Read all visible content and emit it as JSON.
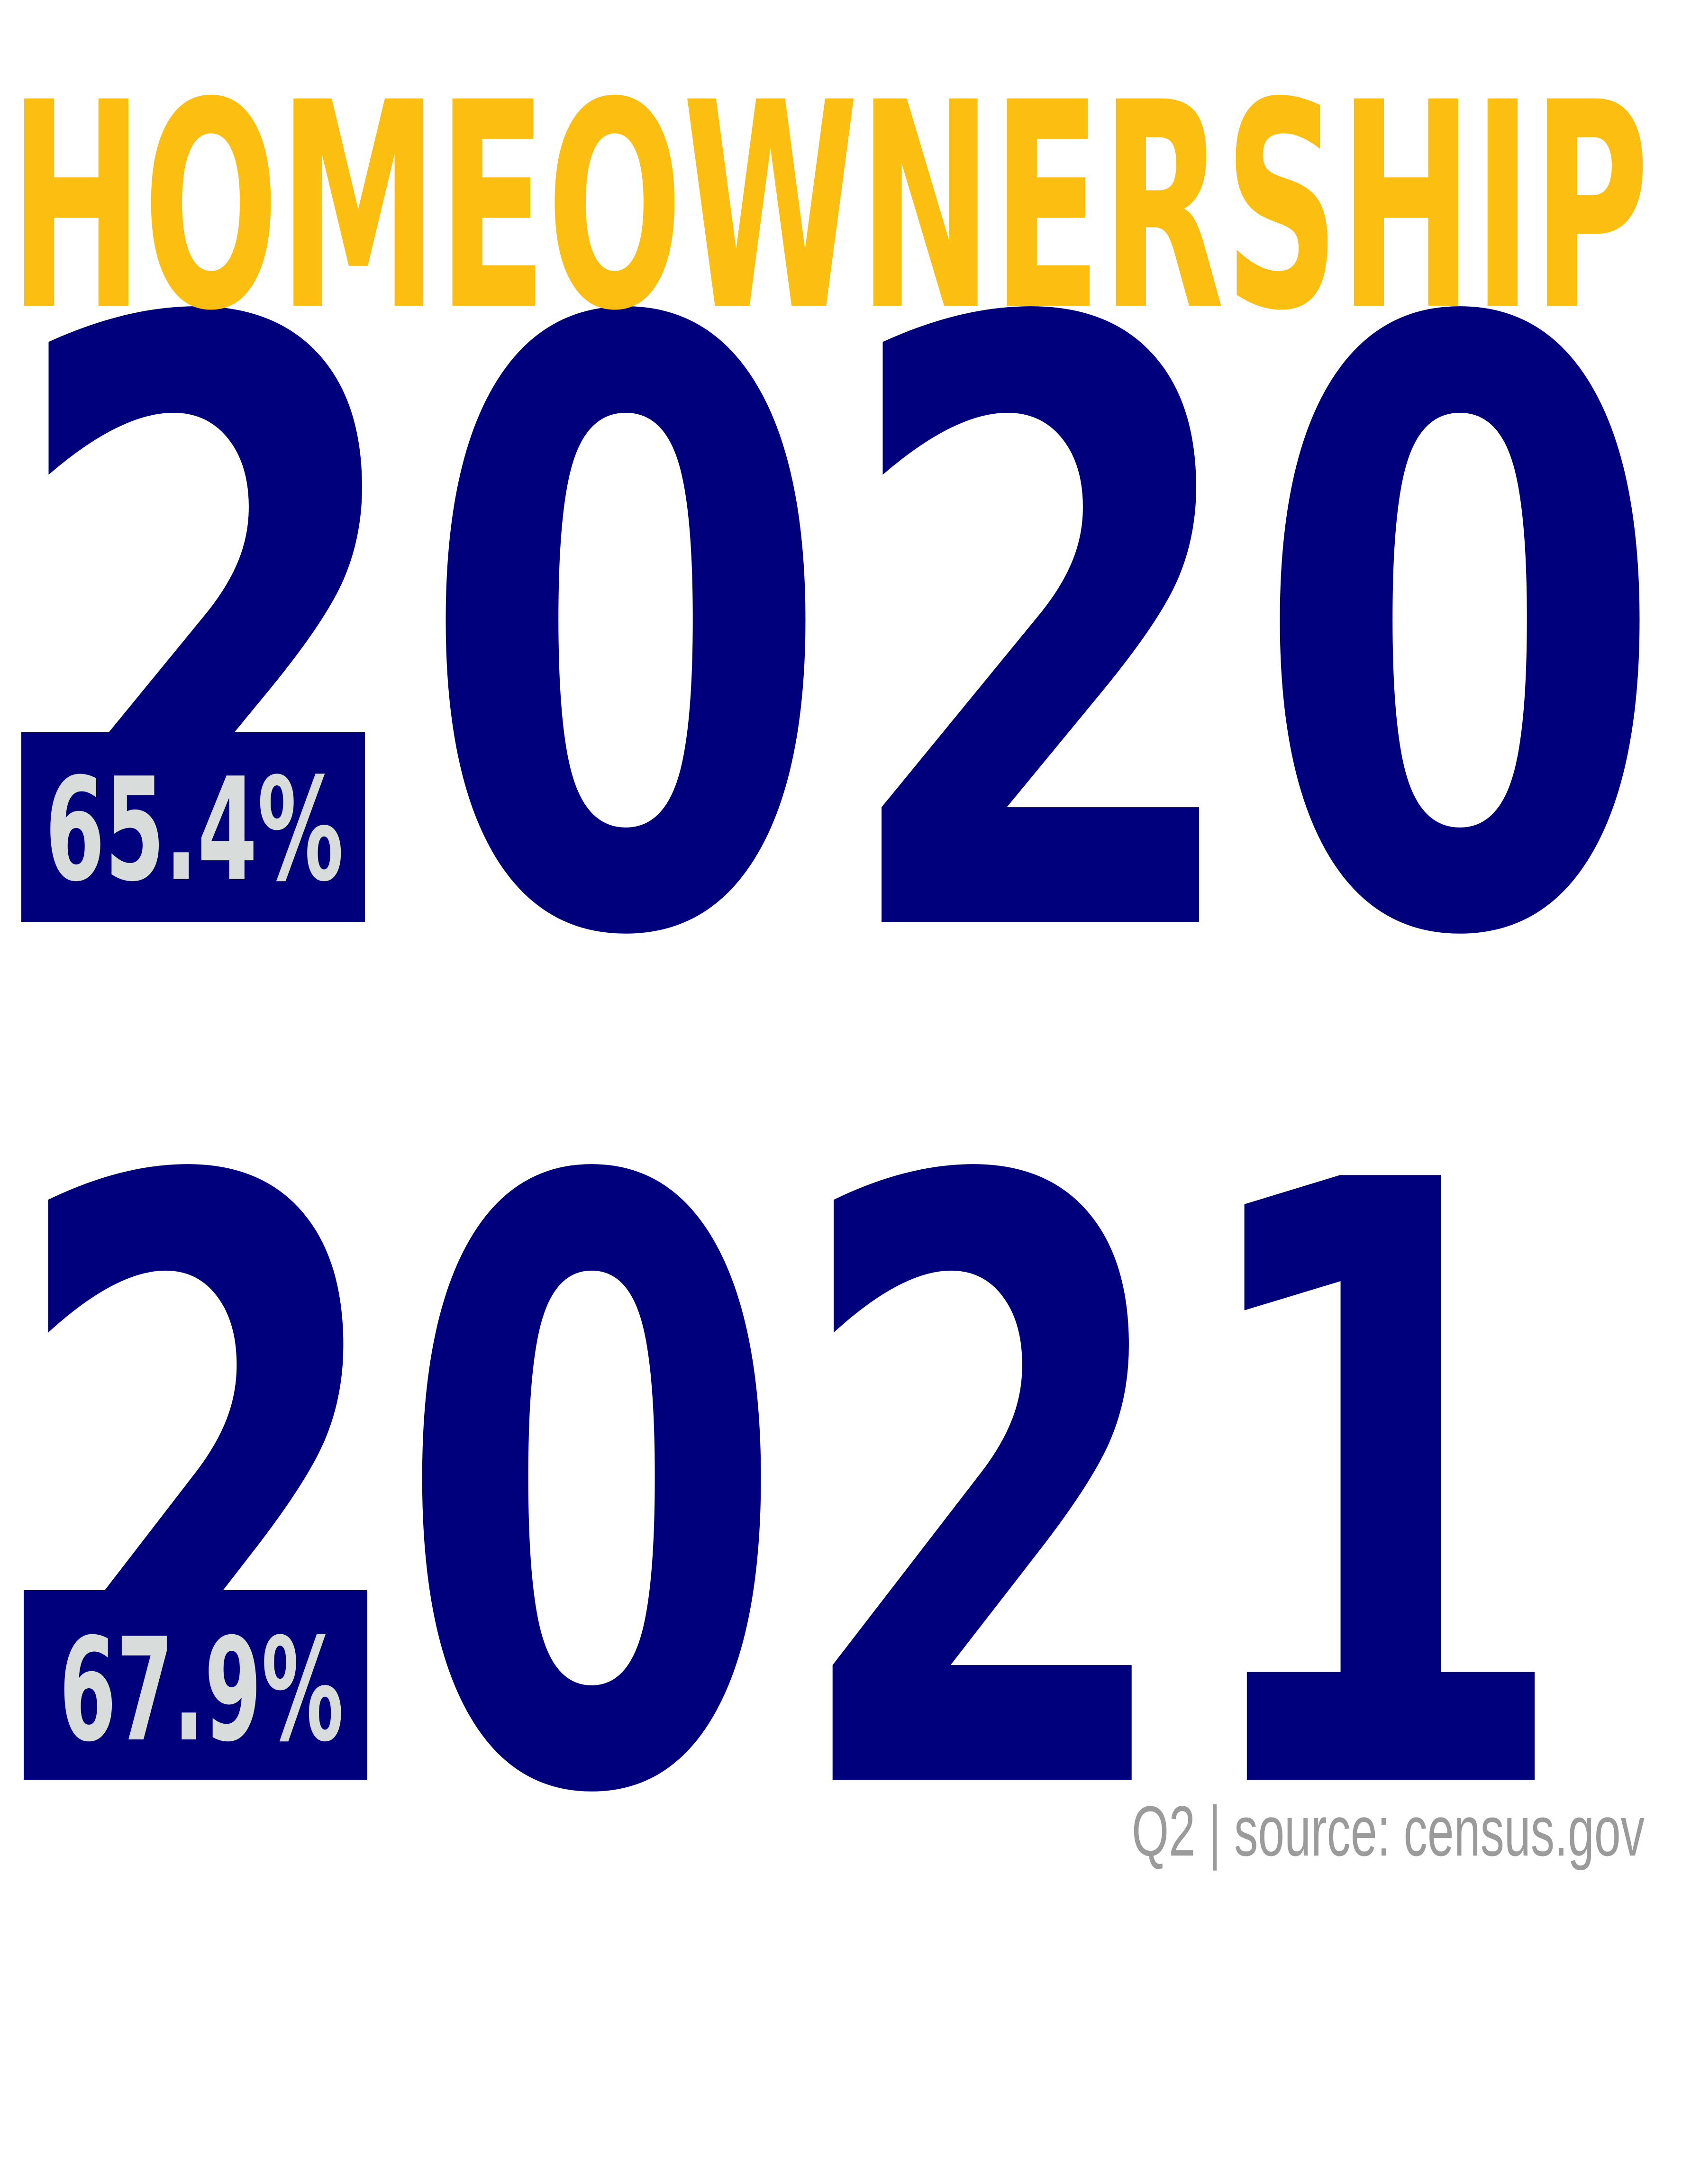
{
  "title": "HOMEOWNERSHIP",
  "rows": [
    {
      "year": "2020",
      "rate": "65.4%"
    },
    {
      "year": "2021",
      "rate": "67.9%"
    }
  ],
  "footer": "Q2 | source: census.gov",
  "colors": {
    "title": "#FDBE12",
    "year": "#00007D",
    "rate": "#D8DCDA",
    "footer": "#9B9B9B",
    "background": "#FFFFFF"
  }
}
